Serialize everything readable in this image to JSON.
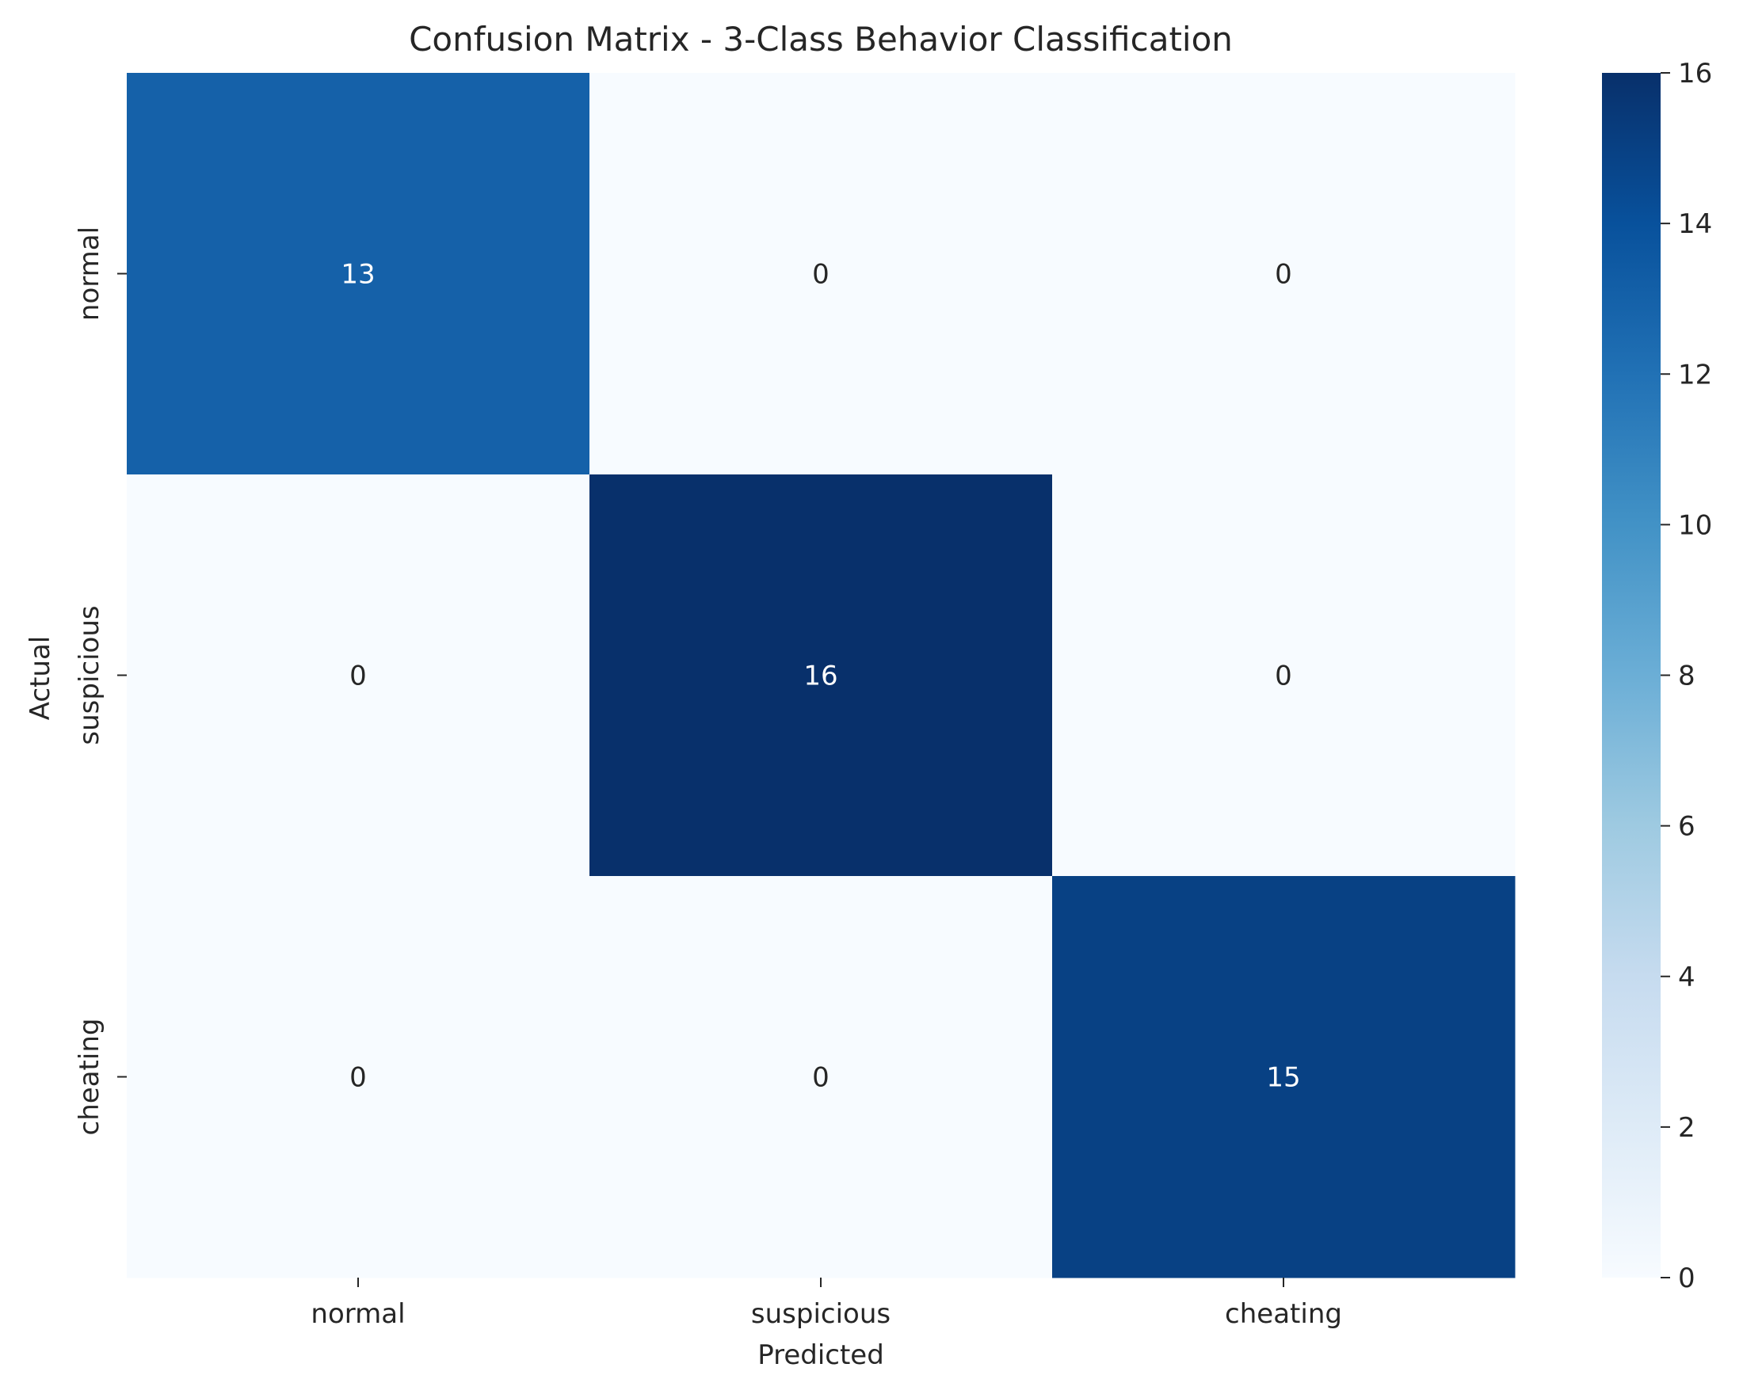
{
  "chart_data": {
    "type": "heatmap",
    "title": "Confusion Matrix - 3-Class Behavior Classification",
    "xlabel": "Predicted",
    "ylabel": "Actual",
    "x_categories": [
      "normal",
      "suspicious",
      "cheating"
    ],
    "y_categories": [
      "normal",
      "suspicious",
      "cheating"
    ],
    "values": [
      [
        13,
        0,
        0
      ],
      [
        0,
        16,
        0
      ],
      [
        0,
        0,
        15
      ]
    ],
    "colormap": "Blues",
    "vmin": 0,
    "vmax": 16,
    "colorbar_ticks": [
      0,
      2,
      4,
      6,
      8,
      10,
      12,
      14,
      16
    ],
    "colors": {
      "low": "#f7fbff",
      "high": "#08306b",
      "text_dark": "#262626",
      "text_light": "#ffffff"
    }
  }
}
